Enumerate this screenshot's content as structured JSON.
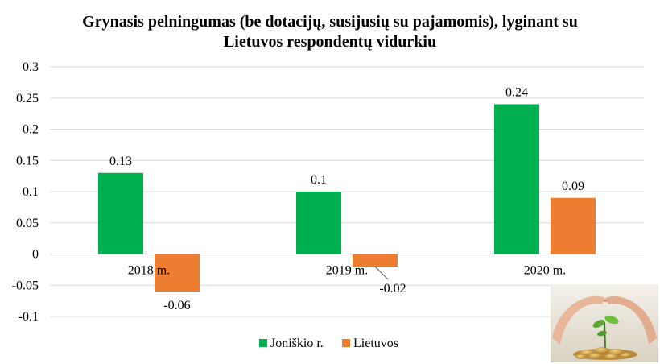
{
  "chart_data": {
    "type": "bar",
    "title_lines": [
      "Grynasis pelningumas (be dotacijų, susijusių su pajamomis), lyginant su",
      "Lietuvos respondentų vidurkiu"
    ],
    "categories": [
      "2018 m.",
      "2019 m.",
      "2020 m."
    ],
    "series": [
      {
        "name": "Joniškio r.",
        "color": "#00b050",
        "values": [
          0.13,
          0.1,
          0.24
        ],
        "labels": [
          "0.13",
          "0.1",
          "0.24"
        ]
      },
      {
        "name": "Lietuvos",
        "color": "#ed7d31",
        "values": [
          -0.06,
          -0.02,
          0.09
        ],
        "labels": [
          "-0.06",
          "-0.02",
          "0.09"
        ]
      }
    ],
    "ylim": [
      -0.1,
      0.3
    ],
    "yticks": [
      0.3,
      0.25,
      0.2,
      0.15,
      0.1,
      0.05,
      0,
      -0.05,
      -0.1
    ],
    "ytick_labels": [
      "0.3",
      "0.25",
      "0.2",
      "0.15",
      "0.1",
      "0.05",
      "0",
      "-0.05",
      "-0.1"
    ],
    "grid": true,
    "legend_position": "bottom",
    "gridline_color": "#d9d9d9",
    "decorative_image": "hands-protecting-plant-with-coins"
  }
}
